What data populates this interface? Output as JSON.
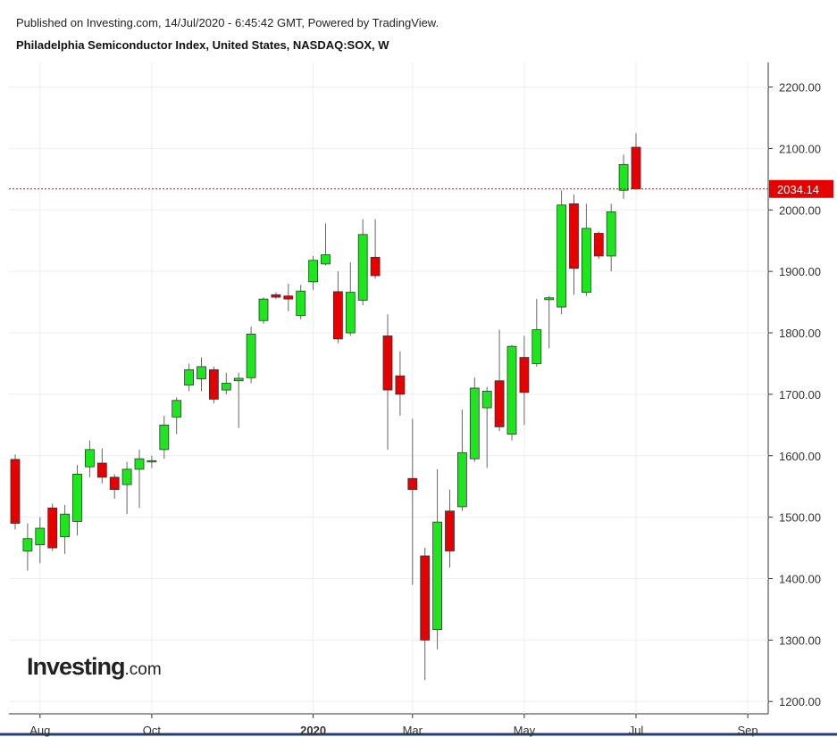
{
  "chart_data": {
    "type": "candlestick",
    "published": "Published on Investing.com, 14/Jul/2020 - 6:45:42 GMT, Powered by TradingView.",
    "title": "Philadelphia Semiconductor Index, United States, NASDAQ:SOX, W",
    "logo": "Investing",
    "logo_suffix": ".com",
    "categories": [
      null,
      null,
      "Aug",
      null,
      null,
      null,
      null,
      null,
      null,
      null,
      null,
      "Oct",
      null,
      null,
      null,
      null,
      null,
      null,
      null,
      null,
      null,
      null,
      null,
      null,
      "2020",
      null,
      null,
      null,
      null,
      null,
      null,
      null,
      "Mar",
      null,
      null,
      null,
      null,
      null,
      null,
      null,
      null,
      "May",
      null,
      null,
      null,
      null,
      null,
      null,
      null,
      null,
      "Jul",
      null,
      null,
      null,
      null,
      null,
      null,
      null,
      null,
      "Sep"
    ],
    "open": [
      1594,
      1445,
      1455,
      1515,
      1468,
      1493,
      1582,
      1588,
      1565,
      1553,
      1578,
      1590,
      1610,
      1663,
      1715,
      1725,
      1740,
      1707,
      1722,
      1727,
      1820,
      1862,
      1860,
      1828,
      1883,
      1912,
      1867,
      1800,
      1853,
      1923,
      1795,
      1730,
      1563,
      1437,
      1317,
      1510,
      1517,
      1595,
      1678,
      1722,
      1635,
      1760,
      1750,
      1854,
      1842,
      2010,
      1866,
      1962,
      1925,
      2032,
      2102,
      null,
      null,
      null,
      null,
      null,
      null,
      null,
      null,
      null
    ],
    "high": [
      1602,
      1490,
      1500,
      1522,
      1520,
      1585,
      1625,
      1612,
      1570,
      1590,
      1610,
      1600,
      1665,
      1695,
      1750,
      1760,
      1745,
      1735,
      1735,
      1810,
      1858,
      1866,
      1880,
      1878,
      1925,
      1978,
      1900,
      1915,
      1985,
      1985,
      1830,
      1770,
      1660,
      1450,
      1578,
      1545,
      1675,
      1727,
      1712,
      1805,
      1780,
      1795,
      1855,
      1860,
      2032,
      2025,
      2010,
      1965,
      2010,
      2090,
      2125,
      null,
      null,
      null,
      null,
      null,
      null,
      null,
      null,
      null
    ],
    "low": [
      1480,
      1413,
      1425,
      1445,
      1440,
      1470,
      1565,
      1555,
      1530,
      1505,
      1515,
      1580,
      1595,
      1635,
      1705,
      1705,
      1685,
      1700,
      1645,
      1718,
      1815,
      1855,
      1835,
      1822,
      1870,
      1910,
      1783,
      1795,
      1845,
      1888,
      1610,
      1665,
      1390,
      1235,
      1285,
      1418,
      1510,
      1590,
      1580,
      1640,
      1625,
      1650,
      1745,
      1775,
      1830,
      1862,
      1860,
      1920,
      1900,
      2018,
      2033,
      null,
      null,
      null,
      null,
      null,
      null,
      null,
      null,
      null
    ],
    "close": [
      1490,
      1465,
      1482,
      1450,
      1505,
      1570,
      1610,
      1565,
      1545,
      1578,
      1595,
      1592,
      1650,
      1690,
      1740,
      1745,
      1692,
      1718,
      1726,
      1798,
      1855,
      1858,
      1855,
      1868,
      1918,
      1927,
      1790,
      1866,
      1960,
      1893,
      1707,
      1700,
      1545,
      1300,
      1492,
      1445,
      1605,
      1710,
      1705,
      1647,
      1778,
      1703,
      1805,
      1857,
      2008,
      1905,
      1970,
      1925,
      1997,
      2074,
      2034.14,
      null,
      null,
      null,
      null,
      null,
      null,
      null,
      null,
      null
    ],
    "up_color": "#1ee61e",
    "down_color": "#e60000",
    "last_price": 2034.14,
    "last_price_color": "#e60000",
    "ylim": [
      1180,
      2240
    ],
    "yticks": [
      {
        "value": 1200,
        "label": "1200.00"
      },
      {
        "value": 1300,
        "label": "1300.00"
      },
      {
        "value": 1400,
        "label": "1400.00"
      },
      {
        "value": 1500,
        "label": "1500.00"
      },
      {
        "value": 1600,
        "label": "1600.00"
      },
      {
        "value": 1700,
        "label": "1700.00"
      },
      {
        "value": 1800,
        "label": "1800.00"
      },
      {
        "value": 1900,
        "label": "1900.00"
      },
      {
        "value": 2000,
        "label": "2000.00"
      },
      {
        "value": 2100,
        "label": "2100.00"
      },
      {
        "value": 2200,
        "label": "2200.00"
      }
    ],
    "grid": true
  }
}
